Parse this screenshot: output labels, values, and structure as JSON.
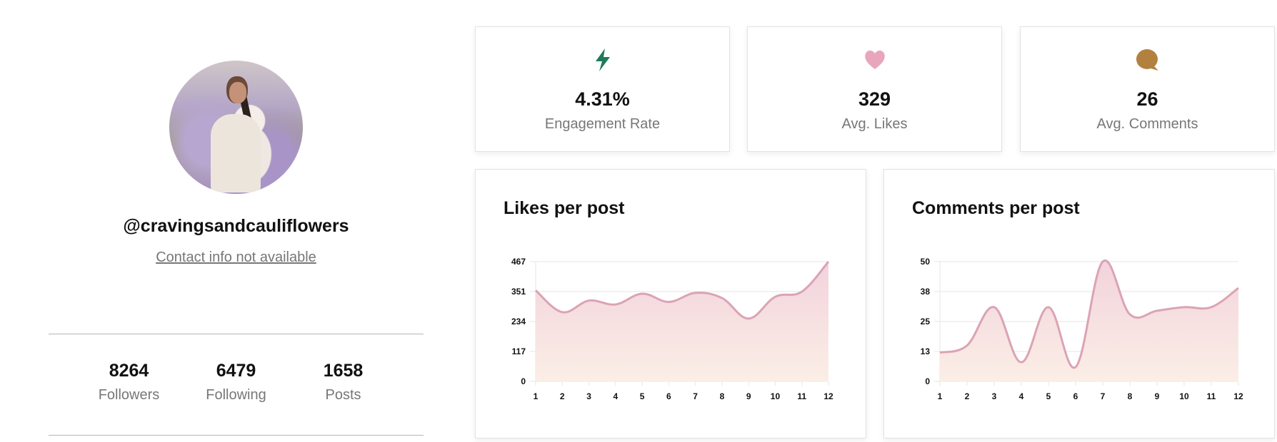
{
  "profile": {
    "avatar_alt": "Profile photo in lavender field",
    "handle": "@cravingsandcauliflowers",
    "contact_link": "Contact info not available",
    "stats": [
      {
        "value": "8264",
        "label": "Followers"
      },
      {
        "value": "6479",
        "label": "Following"
      },
      {
        "value": "1658",
        "label": "Posts"
      }
    ]
  },
  "kpis": [
    {
      "icon": "lightning-bolt-icon",
      "value": "4.31%",
      "label": "Engagement Rate",
      "color": "#1f7a5a"
    },
    {
      "icon": "heart-icon",
      "value": "329",
      "label": "Avg. Likes",
      "color": "#e8a6bd"
    },
    {
      "icon": "speech-bubble-icon",
      "value": "26",
      "label": "Avg. Comments",
      "color": "#b3813f"
    }
  ],
  "colors": {
    "line": "#dba3b5",
    "fill_top": "#f2d3dc",
    "fill_bottom": "#fbeee6",
    "grid": "#e6e6e6"
  },
  "chart_data": [
    {
      "type": "area",
      "title": "Likes per post",
      "xlabel": "",
      "ylabel": "",
      "categories": [
        "1",
        "2",
        "3",
        "4",
        "5",
        "6",
        "7",
        "8",
        "9",
        "10",
        "11",
        "12"
      ],
      "values": [
        355,
        270,
        315,
        300,
        342,
        310,
        345,
        325,
        245,
        330,
        350,
        467
      ],
      "yticks": [
        "0",
        "117",
        "234",
        "351",
        "467"
      ],
      "ylim": [
        0,
        467
      ],
      "grid": true,
      "legend": "none"
    },
    {
      "type": "area",
      "title": "Comments per post",
      "xlabel": "",
      "ylabel": "",
      "categories": [
        "1",
        "2",
        "3",
        "4",
        "5",
        "6",
        "7",
        "8",
        "9",
        "10",
        "11",
        "12"
      ],
      "values": [
        12,
        15,
        31,
        8,
        31,
        6,
        50,
        28,
        29.5,
        31,
        31,
        39
      ],
      "yticks": [
        "0",
        "13",
        "25",
        "38",
        "50"
      ],
      "ylim": [
        0,
        50
      ],
      "grid": true,
      "legend": "none"
    }
  ]
}
